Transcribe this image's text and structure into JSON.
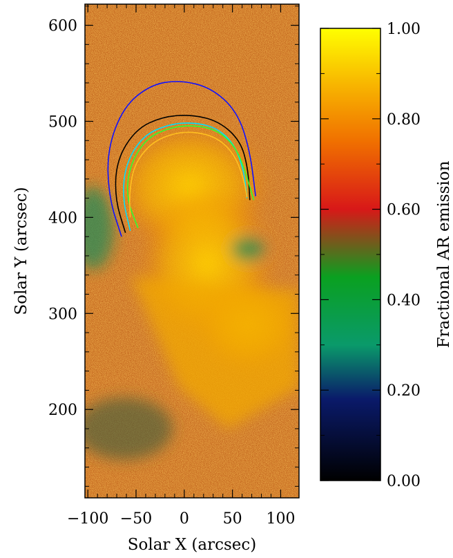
{
  "chart_data": [
    {
      "type": "heatmap",
      "title": "",
      "xlabel": "Solar X (arcsec)",
      "ylabel": "Solar Y (arcsec)",
      "xlim": [
        -103,
        119
      ],
      "ylim": [
        108,
        622
      ],
      "x_ticks": [
        -100,
        -50,
        0,
        50,
        100
      ],
      "y_ticks": [
        200,
        300,
        400,
        500,
        600
      ],
      "x_tick_labels": [
        "−100",
        "−50",
        "0",
        "50",
        "100"
      ],
      "y_tick_labels": [
        "200",
        "300",
        "400",
        "500",
        "600"
      ],
      "description_of_field": "fractional active-region emission map",
      "loops": [
        {
          "color": "#1010ff",
          "points": [
            [
              -65,
              380
            ],
            [
              -78,
              420
            ],
            [
              -80,
              470
            ],
            [
              -63,
              515
            ],
            [
              -35,
              538
            ],
            [
              -5,
              543
            ],
            [
              28,
              535
            ],
            [
              55,
              510
            ],
            [
              68,
              470
            ],
            [
              74,
              422
            ]
          ]
        },
        {
          "color": "#000000",
          "points": [
            [
              -61,
              384
            ],
            [
              -72,
              420
            ],
            [
              -70,
              460
            ],
            [
              -50,
              492
            ],
            [
              -22,
              505
            ],
            [
              8,
              507
            ],
            [
              36,
              500
            ],
            [
              58,
              480
            ],
            [
              66,
              452
            ],
            [
              68,
              418
            ]
          ]
        },
        {
          "color": "#00e0ff",
          "points": [
            [
              -56,
              386
            ],
            [
              -64,
              420
            ],
            [
              -61,
              455
            ],
            [
              -43,
              485
            ],
            [
              -16,
              497
            ],
            [
              10,
              499
            ],
            [
              34,
              493
            ],
            [
              52,
              476
            ],
            [
              62,
              448
            ],
            [
              65,
              420
            ]
          ]
        },
        {
          "color": "#30ff30",
          "points": [
            [
              -48,
              389
            ],
            [
              -60,
              420
            ],
            [
              -57,
              453
            ],
            [
              -40,
              482
            ],
            [
              -14,
              494
            ],
            [
              12,
              496
            ],
            [
              36,
              490
            ],
            [
              54,
              472
            ],
            [
              64,
              446
            ],
            [
              72,
              418
            ]
          ]
        },
        {
          "color": "#ffc020",
          "points": [
            [
              -56,
              400
            ],
            [
              -57,
              425
            ],
            [
              -52,
              455
            ],
            [
              -34,
              478
            ],
            [
              -10,
              488
            ],
            [
              12,
              489
            ],
            [
              34,
              483
            ],
            [
              51,
              467
            ],
            [
              61,
              443
            ],
            [
              65,
              421
            ]
          ]
        }
      ]
    },
    {
      "type": "heatmap",
      "title": "",
      "ylabel": "Fractional AR emission",
      "ylim": [
        0.0,
        1.0
      ],
      "y_ticks": [
        0.0,
        0.2,
        0.4,
        0.6,
        0.8,
        1.0
      ],
      "y_tick_labels": [
        "0.00",
        "0.20",
        "0.40",
        "0.60",
        "0.80",
        "1.00"
      ],
      "colormap": [
        {
          "value": 0.0,
          "color": "#000000"
        },
        {
          "value": 0.18,
          "color": "#0a1a6a"
        },
        {
          "value": 0.3,
          "color": "#0a9a6a"
        },
        {
          "value": 0.45,
          "color": "#0aa020"
        },
        {
          "value": 0.6,
          "color": "#d81818"
        },
        {
          "value": 0.75,
          "color": "#f07000"
        },
        {
          "value": 0.88,
          "color": "#f8b800"
        },
        {
          "value": 1.0,
          "color": "#ffff00"
        }
      ]
    }
  ]
}
